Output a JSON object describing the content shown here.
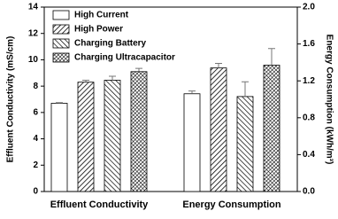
{
  "chart_data": {
    "type": "bar",
    "categories": [
      "Effluent Conductivity",
      "Energy Consumption"
    ],
    "category_axis": [
      "y",
      "y2"
    ],
    "ylabel": "Effluent Conductivity (mS/cm)",
    "y2label": "Energy Consumption (kWh/m³)",
    "ylim": [
      0,
      14
    ],
    "yticks": [
      0,
      2,
      4,
      6,
      8,
      10,
      12,
      14
    ],
    "y2lim": [
      0,
      2
    ],
    "y2ticks": [
      {
        "value": 0,
        "label": "0.0"
      },
      0.4,
      0.8,
      1.2,
      1.6,
      {
        "value": 2,
        "label": "2.0"
      }
    ],
    "legend": "upper left",
    "series": [
      {
        "name": "High Current",
        "color": "#000000",
        "hatch": "none",
        "values": [
          6.7,
          1.06
        ],
        "errors": [
          0.05,
          0.03
        ]
      },
      {
        "name": "High Power",
        "color": "#000000",
        "hatch": "forward",
        "values": [
          8.3,
          1.34
        ],
        "errors": [
          0.15,
          0.05
        ]
      },
      {
        "name": "Charging Battery",
        "color": "#000000",
        "hatch": "back",
        "values": [
          8.45,
          1.03
        ],
        "errors": [
          0.3,
          0.16
        ]
      },
      {
        "name": "Charging Ultracapacitor",
        "color": "#000000",
        "hatch": "cross",
        "values": [
          9.1,
          1.37
        ],
        "errors": [
          0.25,
          0.18
        ]
      }
    ]
  }
}
